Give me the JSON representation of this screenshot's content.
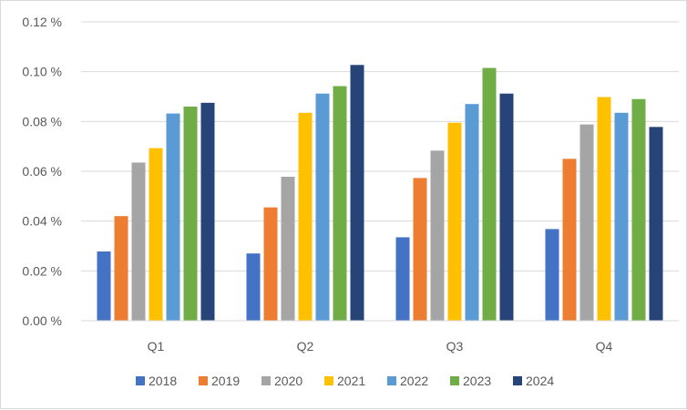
{
  "chart_data": {
    "type": "bar",
    "categories": [
      "Q1",
      "Q2",
      "Q3",
      "Q4"
    ],
    "ylim": [
      0,
      0.12
    ],
    "yticks": [
      "0.00 %",
      "0.02 %",
      "0.04 %",
      "0.06 %",
      "0.08 %",
      "0.10 %",
      "0.12 %"
    ],
    "grid": true,
    "legend_position": "bottom",
    "series": [
      {
        "name": "2018",
        "color": "#4472c4",
        "values": [
          0.0278,
          0.027,
          0.0335,
          0.0368
        ]
      },
      {
        "name": "2019",
        "color": "#ed7d31",
        "values": [
          0.042,
          0.0455,
          0.0573,
          0.065
        ]
      },
      {
        "name": "2020",
        "color": "#a5a5a5",
        "values": [
          0.0635,
          0.0578,
          0.0683,
          0.0788
        ]
      },
      {
        "name": "2021",
        "color": "#ffc000",
        "values": [
          0.0693,
          0.0835,
          0.0795,
          0.0898
        ]
      },
      {
        "name": "2022",
        "color": "#5b9bd5",
        "values": [
          0.0832,
          0.0912,
          0.087,
          0.0835
        ]
      },
      {
        "name": "2023",
        "color": "#70ad47",
        "values": [
          0.086,
          0.0942,
          0.1015,
          0.089
        ]
      },
      {
        "name": "2024",
        "color": "#264478",
        "values": [
          0.0875,
          0.1027,
          0.0912,
          0.0778
        ]
      }
    ]
  }
}
